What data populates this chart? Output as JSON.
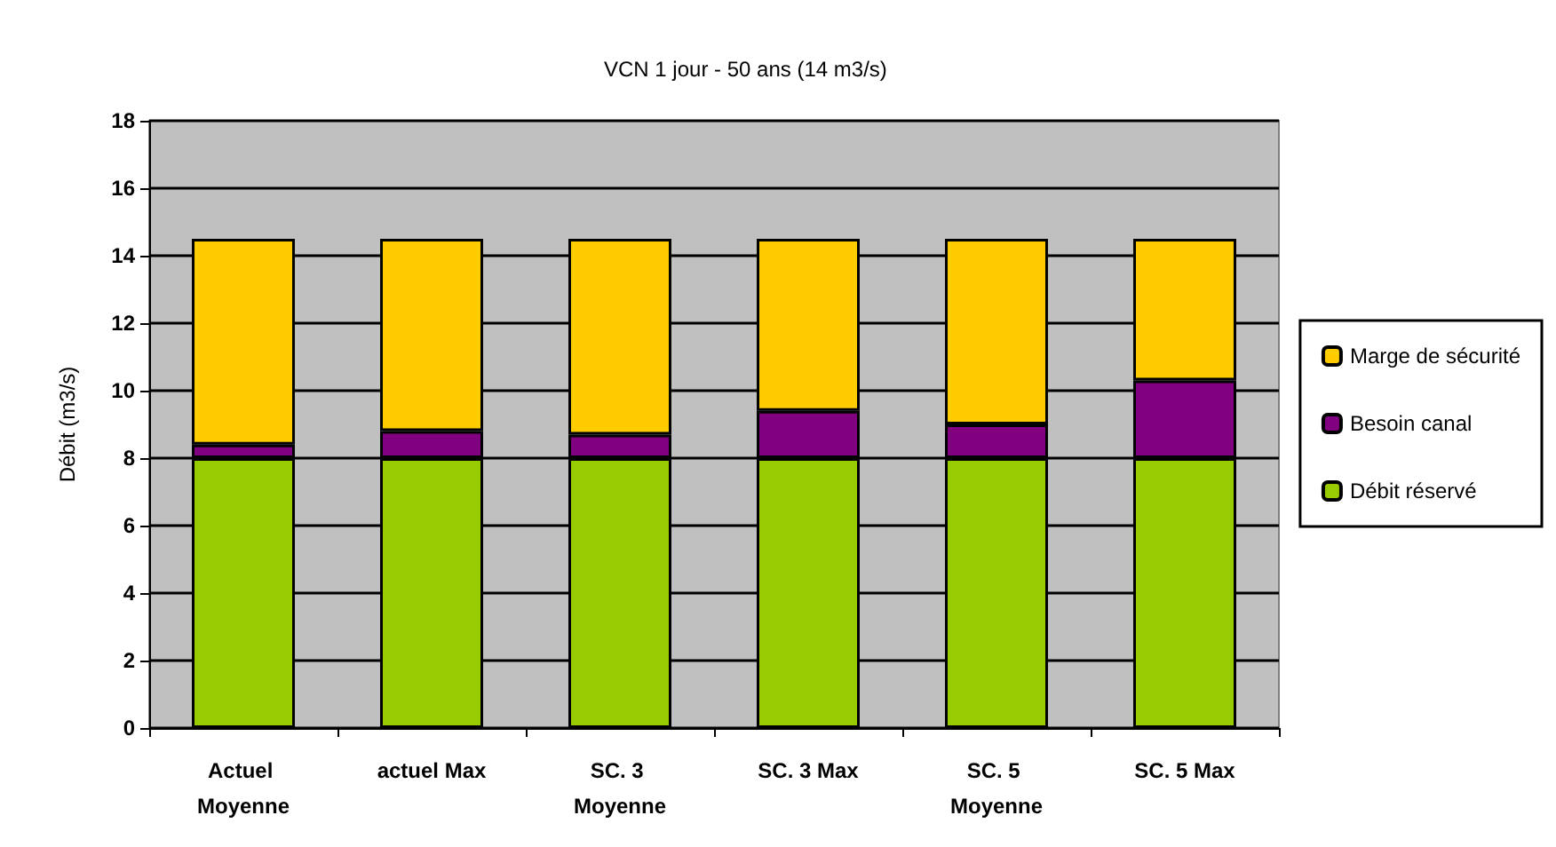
{
  "chart_data": {
    "type": "bar",
    "title": "VCN 1 jour - 50 ans (14 m3/s)",
    "ylabel": "Débit (m3/s)",
    "categories": [
      "Actuel Moyenne",
      "actuel Max",
      "SC. 3 Moyenne",
      "SC. 3 Max",
      "SC. 5 Moyenne",
      "SC. 5 Max"
    ],
    "series": [
      {
        "name": "Débit réservé",
        "color": "#99cc00",
        "values": [
          8,
          8,
          8,
          8,
          8,
          8
        ]
      },
      {
        "name": "Besoin canal",
        "color": "#800080",
        "values": [
          0.4,
          0.8,
          0.7,
          1.4,
          1.0,
          2.3
        ]
      },
      {
        "name": "Marge de sécurité",
        "color": "#ffcc00",
        "values": [
          6.1,
          5.7,
          5.8,
          5.1,
          5.5,
          4.2
        ]
      }
    ],
    "stacked": true,
    "ylim": [
      0,
      18
    ],
    "yticks": [
      0,
      2,
      4,
      6,
      8,
      10,
      12,
      14,
      16,
      18
    ],
    "grid": "y",
    "legend": "right"
  }
}
